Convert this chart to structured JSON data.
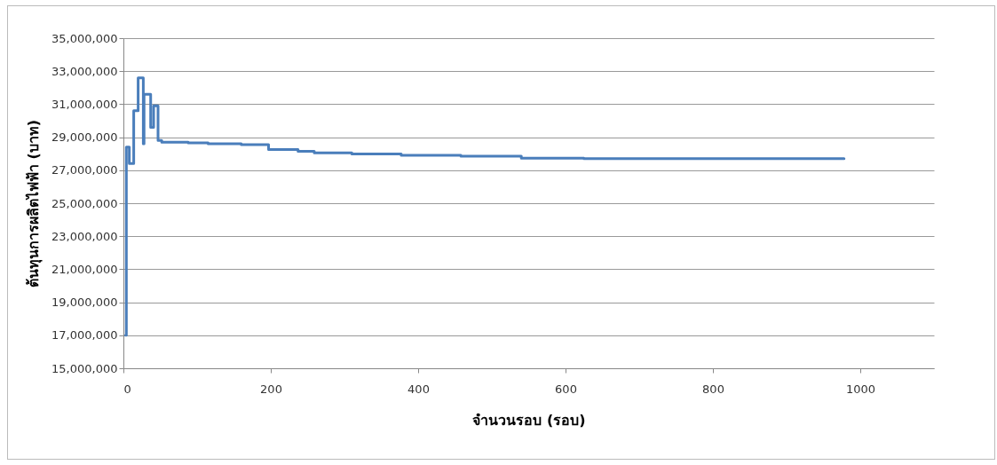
{
  "chart_data": {
    "type": "step",
    "xlabel": "จำนวนรอบ (รอบ)",
    "ylabel": "ต้นทุนการผลิตไฟฟ้า (บาท)",
    "x": [
      3,
      4,
      7,
      8,
      13,
      14,
      19,
      20,
      26,
      27,
      28,
      36,
      37,
      40,
      41,
      46,
      47,
      52,
      88,
      115,
      160,
      197,
      237,
      259,
      310,
      377,
      458,
      540,
      625,
      978
    ],
    "series": [
      {
        "color": "#4a7ebb",
        "values": [
          17000000,
          28400000,
          28400000,
          27400000,
          27400000,
          30600000,
          30600000,
          32600000,
          32600000,
          28600000,
          31600000,
          31600000,
          29600000,
          29600000,
          30900000,
          30900000,
          28800000,
          28700000,
          28650000,
          28600000,
          28550000,
          28250000,
          28150000,
          28050000,
          27980000,
          27900000,
          27850000,
          27730000,
          27700000,
          27700000
        ]
      }
    ],
    "xlim": [
      0,
      1100
    ],
    "xticks": [
      0,
      200,
      400,
      600,
      800,
      1000
    ],
    "ylim": [
      15000000,
      35000000
    ],
    "yticks": [
      {
        "value": 15000000,
        "label": "15,000,000"
      },
      {
        "value": 17000000,
        "label": "17,000,000"
      },
      {
        "value": 19000000,
        "label": "19,000,000"
      },
      {
        "value": 21000000,
        "label": "21,000,000"
      },
      {
        "value": 23000000,
        "label": "23,000,000"
      },
      {
        "value": 25000000,
        "label": "25,000,000"
      },
      {
        "value": 27000000,
        "label": "27,000,000"
      },
      {
        "value": 29000000,
        "label": "29,000,000"
      },
      {
        "value": 31000000,
        "label": "31,000,000"
      },
      {
        "value": 33000000,
        "label": "33,000,000"
      },
      {
        "value": 35000000,
        "label": "35,000,000"
      }
    ],
    "grid": "y",
    "legend": false
  }
}
